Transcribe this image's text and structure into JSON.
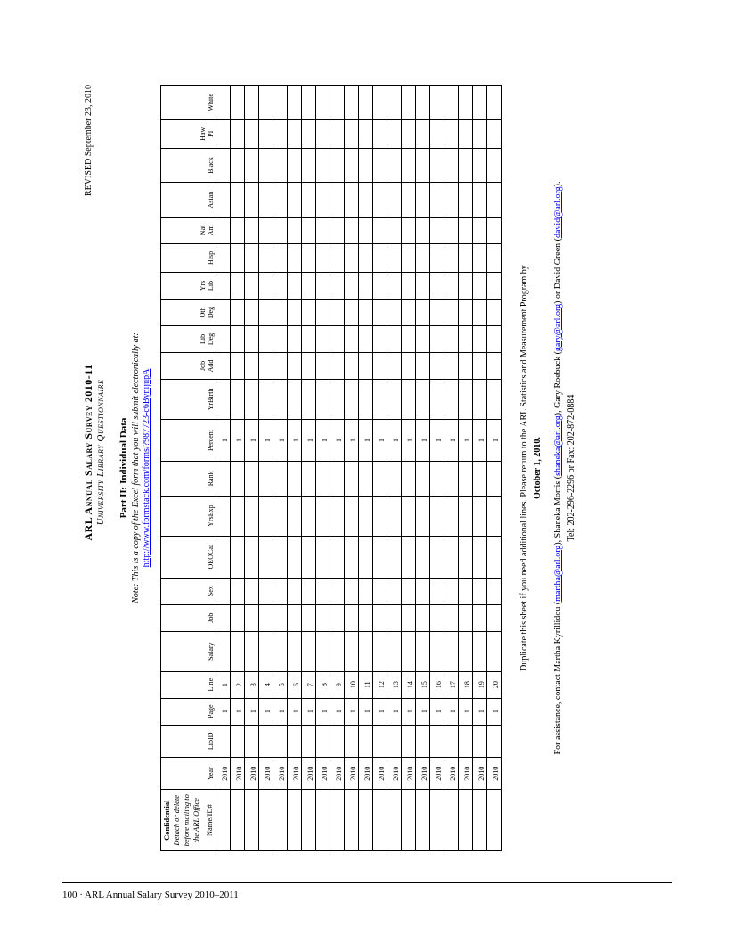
{
  "header": {
    "title": "ARL Annual Salary Survey 2010-11",
    "subtitle": "University Library Questionnaire",
    "revised": "REVISED September 23, 2010"
  },
  "part": {
    "label": "Part II:  Individual Data",
    "note": "Note: This is a copy of the Excel form that you will submit electronically at:",
    "url": "http://www.formstack.com/forms/?987723-c6BynijupA"
  },
  "confidential": {
    "head": "Confidential",
    "body": "Detach or delete before mailing to the ARL Office"
  },
  "columns": [
    "Name/ID#",
    "Year",
    "LibID",
    "Page",
    "Line",
    "Salary",
    "Job",
    "Sex",
    "OEOCat",
    "YrsExp",
    "Rank",
    "Percent",
    "YrBirth",
    "Job Add",
    "Lib Deg",
    "Oth Deg",
    "Yrs Lib",
    "Hisp",
    "Nat Am",
    "Asian",
    "Black",
    "Haw PI",
    "White"
  ],
  "col_widths": [
    "",
    "34",
    "34",
    "28",
    "28",
    "42",
    "28",
    "28",
    "44",
    "42",
    "36",
    "44",
    "42",
    "28",
    "28",
    "28",
    "28",
    "30",
    "28",
    "36",
    "36",
    "30",
    "36"
  ],
  "row_count": 20,
  "year_value": "2010",
  "page_value": "1",
  "percent_value": "1",
  "footer": {
    "line1": "Duplicate this sheet if you need additional lines. Please return to the ARL Statistics and Measurement Program by",
    "deadline": "October 1, 2010",
    "assist_pre": "For assistance, contact Martha Kyrillidou (",
    "email1": "martha@arl.org",
    "assist_mid1": "), Shaneka Morris (",
    "email2": "shaneka@arl.org",
    "assist_mid2": "), Gary Roebuck (",
    "email3": "gary@arl.org",
    "assist_mid3": ") or David Green (",
    "email4": "david@arl.org",
    "assist_end": ").",
    "telfax": "Tel: 202-296-2296 or Fax: 202-872-0884"
  },
  "page_footer": "100 · ARL Annual Salary Survey 2010–2011"
}
